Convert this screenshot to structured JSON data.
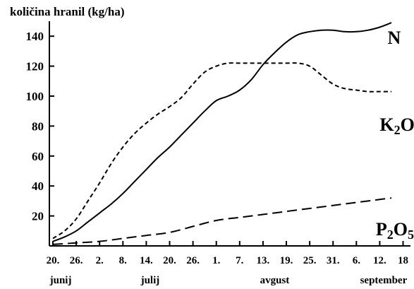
{
  "chart_data": {
    "type": "line",
    "title": "",
    "ylabel": "količina hranil (kg/ha)",
    "xlabel": "",
    "ylim": [
      0,
      150
    ],
    "xlim": [
      0,
      89
    ],
    "grid": false,
    "legend": "none",
    "y_ticks": [
      20,
      40,
      60,
      80,
      100,
      120,
      140
    ],
    "x_ticks": [
      {
        "label": "20.",
        "x": 0
      },
      {
        "label": "26.",
        "x": 6
      },
      {
        "label": "2.",
        "x": 12
      },
      {
        "label": "8.",
        "x": 18
      },
      {
        "label": "14.",
        "x": 24
      },
      {
        "label": "20.",
        "x": 30
      },
      {
        "label": "26.",
        "x": 36
      },
      {
        "label": "1.",
        "x": 42
      },
      {
        "label": "7.",
        "x": 48
      },
      {
        "label": "13.",
        "x": 54
      },
      {
        "label": "19.",
        "x": 60
      },
      {
        "label": "25.",
        "x": 66
      },
      {
        "label": "31.",
        "x": 72
      },
      {
        "label": "6.",
        "x": 78
      },
      {
        "label": "12.",
        "x": 84
      },
      {
        "label": "18",
        "x": 90
      }
    ],
    "months": [
      {
        "label": "junij",
        "x": 2
      },
      {
        "label": "julij",
        "x": 25
      },
      {
        "label": "avgust",
        "x": 57
      },
      {
        "label": "september",
        "x": 85
      }
    ],
    "series": [
      {
        "name": "N",
        "subscript_name": [
          {
            "t": "N"
          }
        ],
        "style": "solid",
        "label_pos": {
          "x": 86,
          "y": 135
        },
        "points": [
          [
            0,
            3
          ],
          [
            3,
            6
          ],
          [
            6,
            10
          ],
          [
            9,
            16
          ],
          [
            12,
            22
          ],
          [
            15,
            28
          ],
          [
            18,
            35
          ],
          [
            21,
            43
          ],
          [
            24,
            51
          ],
          [
            27,
            59
          ],
          [
            30,
            66
          ],
          [
            33,
            74
          ],
          [
            36,
            82
          ],
          [
            39,
            90
          ],
          [
            42,
            97
          ],
          [
            45,
            100
          ],
          [
            48,
            104
          ],
          [
            51,
            111
          ],
          [
            54,
            121
          ],
          [
            57,
            129
          ],
          [
            60,
            136
          ],
          [
            63,
            141
          ],
          [
            66,
            143
          ],
          [
            69,
            144
          ],
          [
            72,
            144
          ],
          [
            75,
            143
          ],
          [
            78,
            143
          ],
          [
            81,
            144
          ],
          [
            84,
            146
          ],
          [
            87,
            149
          ]
        ]
      },
      {
        "name": "K2O",
        "subscript_name": [
          {
            "t": "K"
          },
          {
            "t": "2",
            "sub": true
          },
          {
            "t": "O"
          }
        ],
        "style": "dashed",
        "label_pos": {
          "x": 84,
          "y": 77
        },
        "points": [
          [
            0,
            5
          ],
          [
            3,
            10
          ],
          [
            6,
            18
          ],
          [
            9,
            30
          ],
          [
            12,
            42
          ],
          [
            15,
            55
          ],
          [
            18,
            66
          ],
          [
            21,
            75
          ],
          [
            24,
            82
          ],
          [
            27,
            88
          ],
          [
            30,
            93
          ],
          [
            33,
            99
          ],
          [
            36,
            108
          ],
          [
            39,
            116
          ],
          [
            42,
            120
          ],
          [
            45,
            122
          ],
          [
            48,
            122
          ],
          [
            51,
            122
          ],
          [
            54,
            122
          ],
          [
            57,
            122
          ],
          [
            60,
            122
          ],
          [
            63,
            122
          ],
          [
            66,
            120
          ],
          [
            69,
            114
          ],
          [
            72,
            108
          ],
          [
            75,
            105
          ],
          [
            78,
            104
          ],
          [
            81,
            103
          ],
          [
            84,
            103
          ],
          [
            87,
            103
          ]
        ]
      },
      {
        "name": "P2O5",
        "subscript_name": [
          {
            "t": "P"
          },
          {
            "t": "2",
            "sub": true
          },
          {
            "t": "O"
          },
          {
            "t": "5",
            "sub": true
          }
        ],
        "style": "longdash",
        "label_pos": {
          "x": 83,
          "y": 7
        },
        "points": [
          [
            0,
            1
          ],
          [
            6,
            2
          ],
          [
            12,
            3
          ],
          [
            18,
            5
          ],
          [
            24,
            7
          ],
          [
            30,
            9
          ],
          [
            36,
            13
          ],
          [
            42,
            17
          ],
          [
            48,
            19
          ],
          [
            54,
            21
          ],
          [
            60,
            23
          ],
          [
            66,
            25
          ],
          [
            72,
            27
          ],
          [
            78,
            29
          ],
          [
            84,
            31
          ],
          [
            87,
            32
          ]
        ]
      }
    ]
  }
}
